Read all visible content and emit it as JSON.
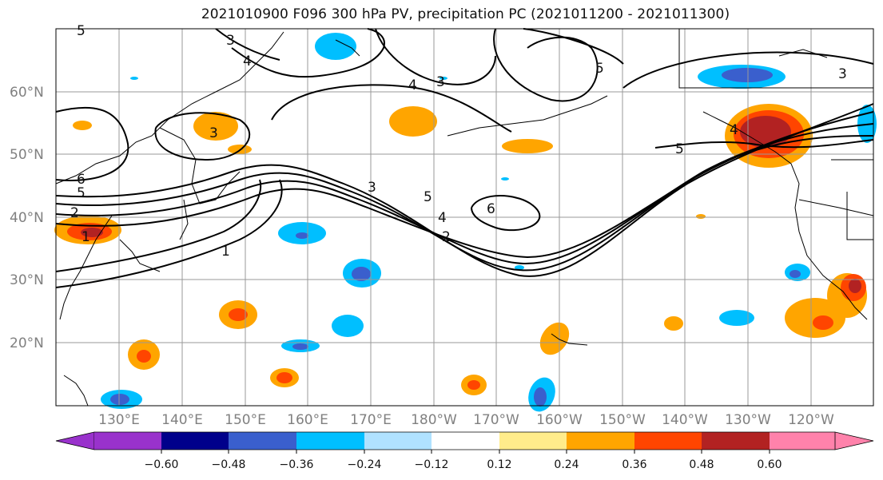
{
  "title": "2021010900 F096 300 hPa PV, precipitation PC (2021011200 - 2021011300)",
  "lat_labels": [
    "60°N",
    "50°N",
    "40°N",
    "30°N",
    "20°N"
  ],
  "lon_labels": [
    "130°E",
    "140°E",
    "150°E",
    "160°E",
    "170°E",
    "180°W",
    "170°W",
    "160°W",
    "150°W",
    "140°W",
    "130°W",
    "120°W"
  ],
  "colorbar": {
    "tick_labels": [
      "−0.60",
      "−0.48",
      "−0.36",
      "−0.24",
      "−0.12",
      "0.12",
      "0.24",
      "0.36",
      "0.48",
      "0.60"
    ],
    "colors": [
      "#9932cc",
      "#00008b",
      "#3a5fcd",
      "#00bfff",
      "#b0e2ff",
      "#ffffff",
      "#ffec8b",
      "#ffa500",
      "#ff4500",
      "#b22222",
      "#ff82ab"
    ]
  },
  "contour_labels": [
    "3",
    "4",
    "4",
    "3",
    "5",
    "3",
    "6",
    "5",
    "3",
    "5",
    "4",
    "2",
    "6",
    "5",
    "2",
    "1",
    "1",
    "3",
    "4",
    "5"
  ]
}
